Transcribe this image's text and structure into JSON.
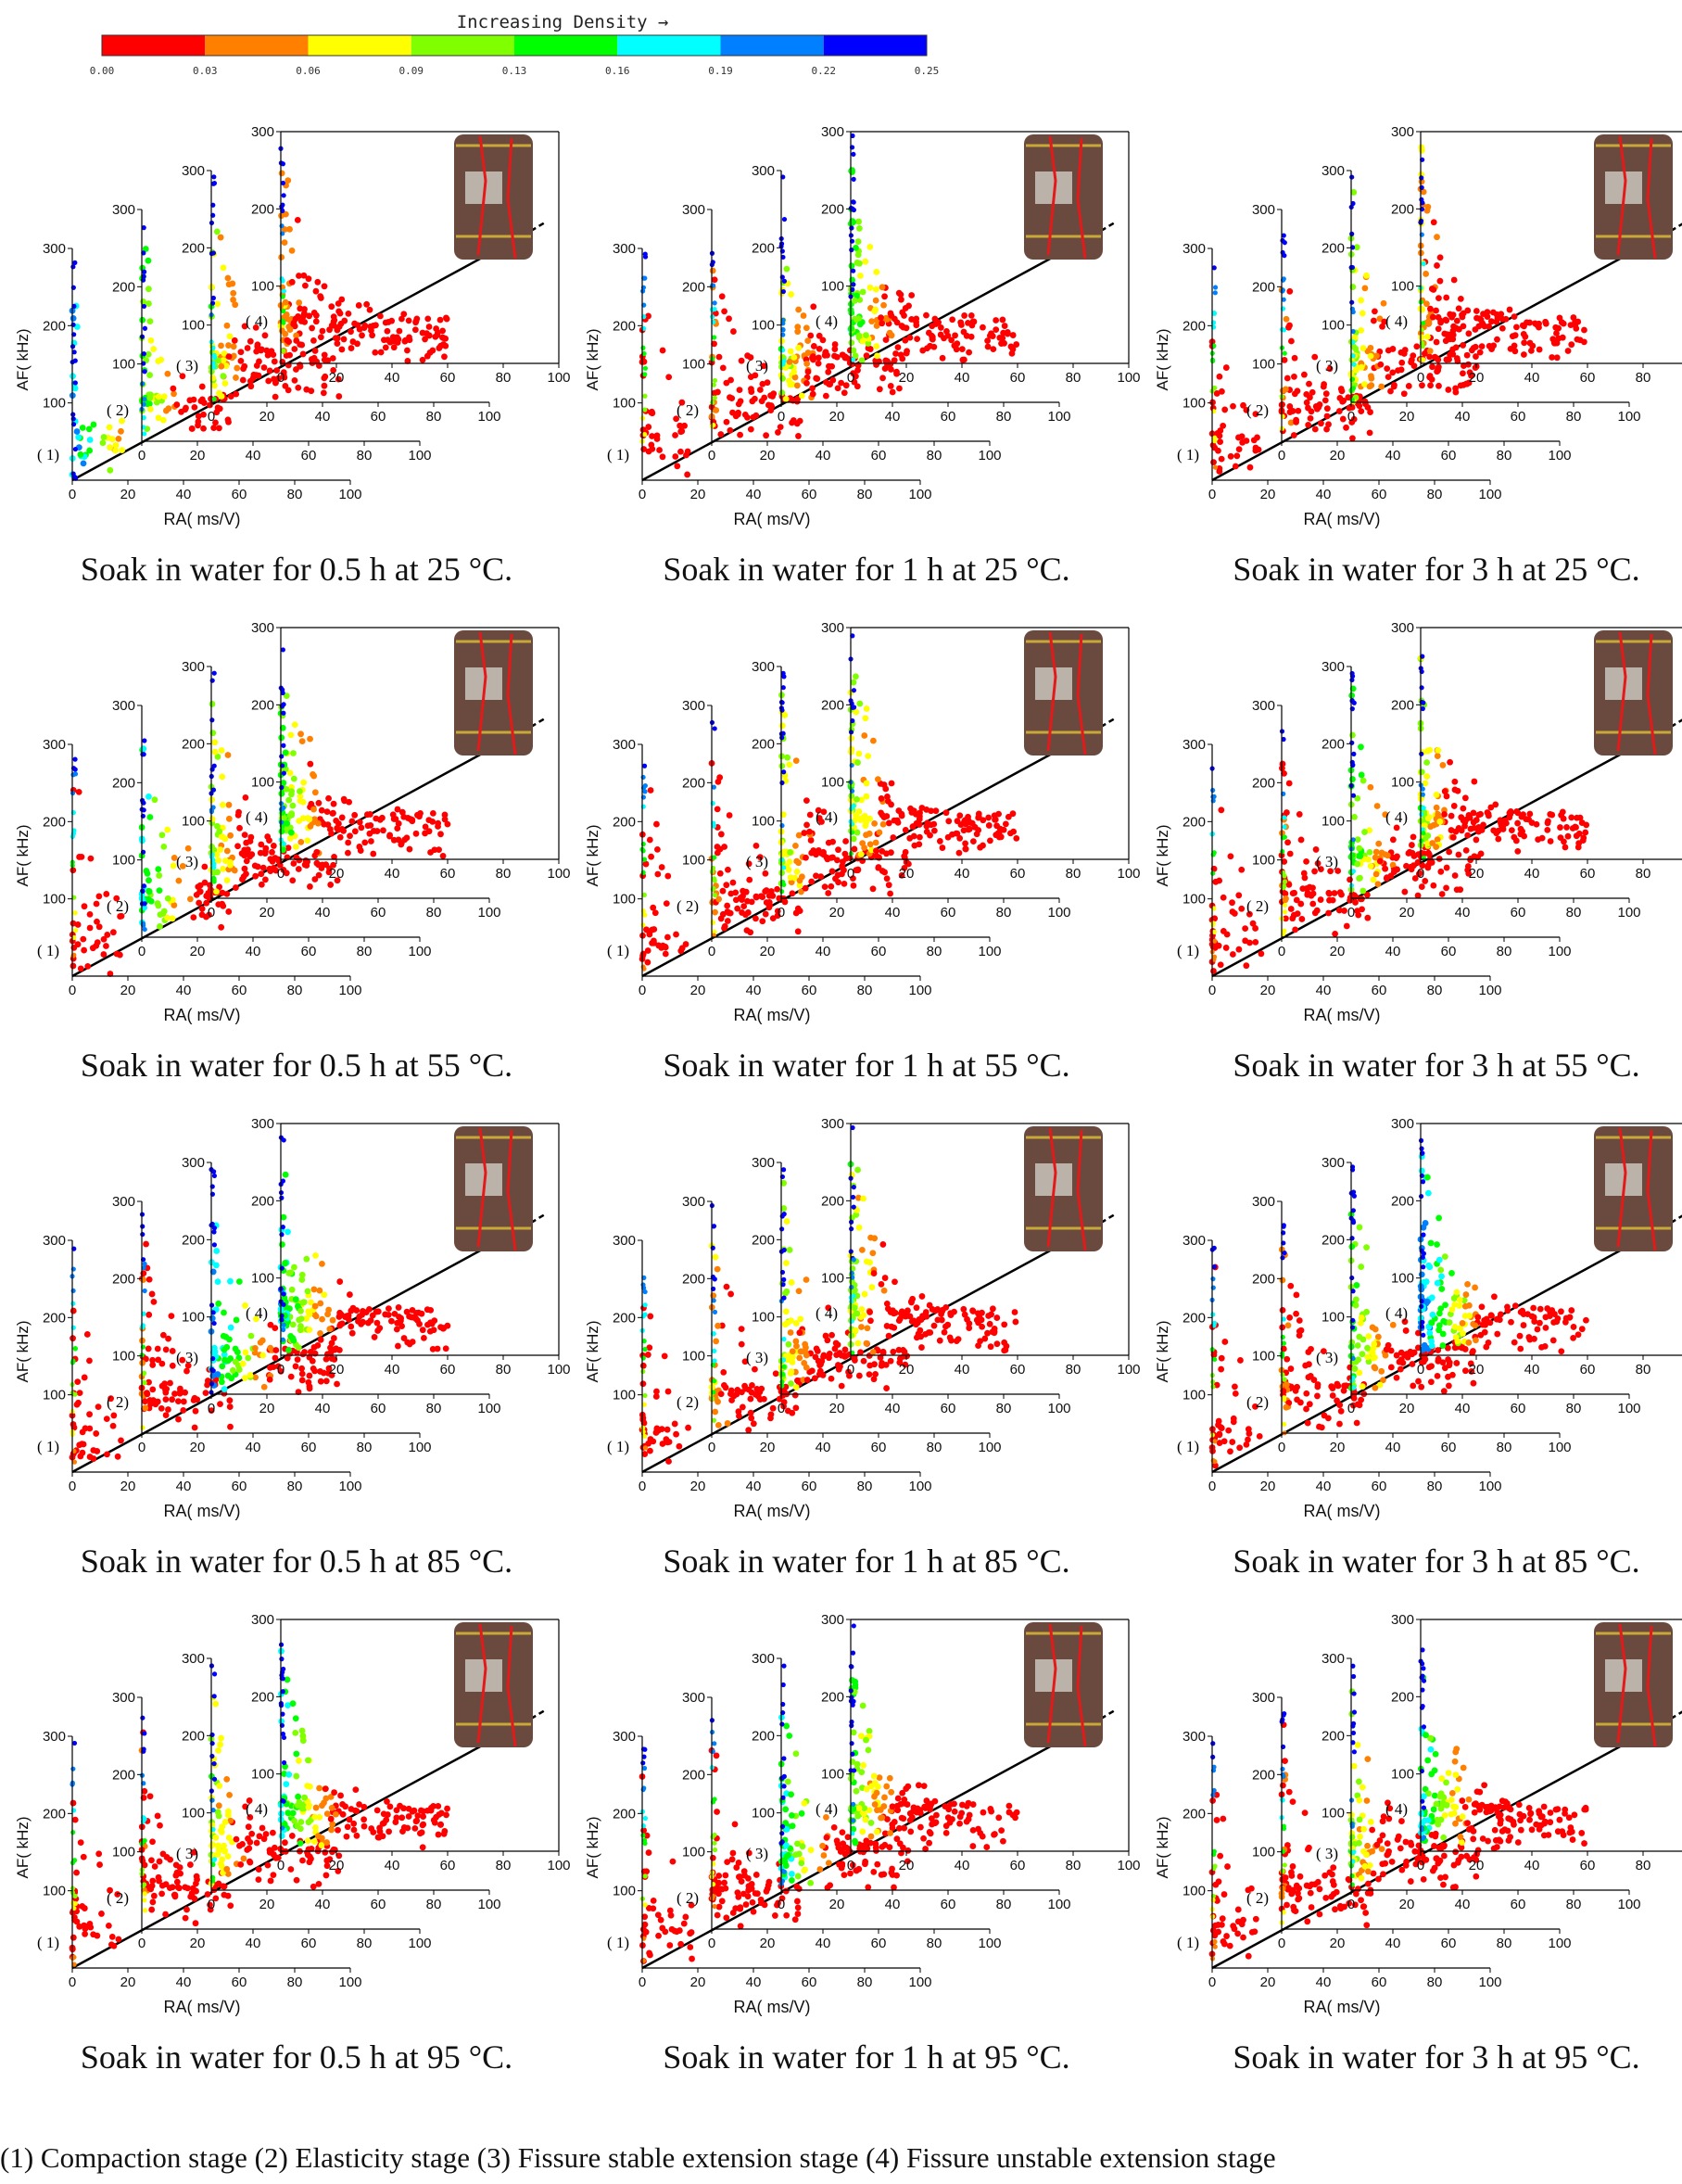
{
  "colorbar": {
    "title": "Increasing Density →",
    "ticks": [
      "0.00",
      "0.03",
      "0.06",
      "0.09",
      "0.13",
      "0.16",
      "0.19",
      "0.22",
      "0.25"
    ],
    "colors": [
      "#ff0000",
      "#ff8000",
      "#ffff00",
      "#80ff00",
      "#00ff00",
      "#00ffff",
      "#0080ff",
      "#0000ff"
    ]
  },
  "chart_data": [
    {
      "type": "scatter",
      "caption": "Soak in water for 0.5 h at 25 °C.",
      "xlabel": "RA( ms/V)",
      "ylabel": "AF( kHz)",
      "axes": {
        "x": [
          0,
          100
        ],
        "y": [
          0,
          300
        ],
        "xticks": [
          0,
          20,
          40,
          60,
          80,
          100
        ],
        "yticks": [
          0,
          100,
          200,
          300
        ]
      },
      "stages": [
        "( 1)",
        "( 2)",
        "( 3)",
        "( 4)"
      ],
      "density_by_stage": [
        0.22,
        0.16,
        0.13,
        0.09
      ]
    },
    {
      "type": "scatter",
      "caption": "Soak in water for 1 h at 25 °C.",
      "xlabel": "RA( ms/V)",
      "ylabel": "AF( kHz)",
      "axes": {
        "x": [
          0,
          100
        ],
        "y": [
          0,
          300
        ],
        "xticks": [
          0,
          20,
          40,
          60,
          80,
          100
        ],
        "yticks": [
          0,
          100,
          200,
          300
        ]
      },
      "stages": [
        "( 1)",
        "( 2)",
        "( 3)",
        "( 4)"
      ],
      "density_by_stage": [
        0.03,
        0.06,
        0.13,
        0.16
      ]
    },
    {
      "type": "scatter",
      "caption": "Soak in water for 3 h at 25 °C.",
      "xlabel": "RA( ms/V)",
      "ylabel": "AF( kHz)",
      "axes": {
        "x": [
          0,
          100
        ],
        "y": [
          0,
          300
        ],
        "xticks": [
          0,
          20,
          40,
          60,
          80,
          100
        ],
        "yticks": [
          0,
          100,
          200,
          300
        ]
      },
      "stages": [
        "( 1)",
        "( 2)",
        "( 3)",
        "( 4)"
      ],
      "density_by_stage": [
        0.03,
        0.06,
        0.13,
        0.09
      ]
    },
    {
      "type": "scatter",
      "caption": "Soak in water for 0.5 h at 55 °C.",
      "xlabel": "RA( ms/V)",
      "ylabel": "AF( kHz)",
      "axes": {
        "x": [
          0,
          100
        ],
        "y": [
          0,
          300
        ],
        "xticks": [
          0,
          20,
          40,
          60,
          80,
          100
        ],
        "yticks": [
          0,
          100,
          200,
          300
        ]
      },
      "stages": [
        "( 1)",
        "( 2)",
        "( 3)",
        "( 4)"
      ],
      "density_by_stage": [
        0.03,
        0.19,
        0.13,
        0.16
      ]
    },
    {
      "type": "scatter",
      "caption": "Soak in water for 1 h at 55 °C.",
      "xlabel": "RA( ms/V)",
      "ylabel": "AF( kHz)",
      "axes": {
        "x": [
          0,
          100
        ],
        "y": [
          0,
          300
        ],
        "xticks": [
          0,
          20,
          40,
          60,
          80,
          100
        ],
        "yticks": [
          0,
          100,
          200,
          300
        ]
      },
      "stages": [
        "( 1)",
        "( 2)",
        "( 3)",
        "( 4)"
      ],
      "density_by_stage": [
        0.03,
        0.06,
        0.13,
        0.13
      ]
    },
    {
      "type": "scatter",
      "caption": "Soak in water for 3 h at 55 °C.",
      "xlabel": "RA( ms/V)",
      "ylabel": "AF( kHz)",
      "axes": {
        "x": [
          0,
          100
        ],
        "y": [
          0,
          300
        ],
        "xticks": [
          0,
          20,
          40,
          60,
          80,
          100
        ],
        "yticks": [
          0,
          100,
          200,
          300
        ]
      },
      "stages": [
        "( 1)",
        "( 2)",
        "( 3)",
        "( 4)"
      ],
      "density_by_stage": [
        0.03,
        0.06,
        0.16,
        0.13
      ]
    },
    {
      "type": "scatter",
      "caption": "Soak in water for 0.5 h at 85 °C.",
      "xlabel": "RA( ms/V)",
      "ylabel": "AF( kHz)",
      "axes": {
        "x": [
          0,
          100
        ],
        "y": [
          0,
          300
        ],
        "xticks": [
          0,
          20,
          40,
          60,
          80,
          100
        ],
        "yticks": [
          0,
          100,
          200,
          300
        ]
      },
      "stages": [
        "( 1)",
        "( 2)",
        "( 3)",
        "( 4)"
      ],
      "density_by_stage": [
        0.03,
        0.06,
        0.22,
        0.19
      ]
    },
    {
      "type": "scatter",
      "caption": "Soak in water for 1 h at 85 °C.",
      "xlabel": "RA( ms/V)",
      "ylabel": "AF( kHz)",
      "axes": {
        "x": [
          0,
          100
        ],
        "y": [
          0,
          300
        ],
        "xticks": [
          0,
          20,
          40,
          60,
          80,
          100
        ],
        "yticks": [
          0,
          100,
          200,
          300
        ]
      },
      "stages": [
        "( 1)",
        "( 2)",
        "( 3)",
        "( 4)"
      ],
      "density_by_stage": [
        0.03,
        0.09,
        0.13,
        0.13
      ]
    },
    {
      "type": "scatter",
      "caption": "Soak in water for 3 h at 85 °C.",
      "xlabel": "RA( ms/V)",
      "ylabel": "AF( kHz)",
      "axes": {
        "x": [
          0,
          100
        ],
        "y": [
          0,
          300
        ],
        "xticks": [
          0,
          20,
          40,
          60,
          80,
          100
        ],
        "yticks": [
          0,
          100,
          200,
          300
        ]
      },
      "stages": [
        "( 1)",
        "( 2)",
        "( 3)",
        "( 4)"
      ],
      "density_by_stage": [
        0.03,
        0.06,
        0.16,
        0.22
      ]
    },
    {
      "type": "scatter",
      "caption": "Soak in water for 0.5 h at 95 °C.",
      "xlabel": "RA( ms/V)",
      "ylabel": "AF( kHz)",
      "axes": {
        "x": [
          0,
          100
        ],
        "y": [
          0,
          300
        ],
        "xticks": [
          0,
          20,
          40,
          60,
          80,
          100
        ],
        "yticks": [
          0,
          100,
          200,
          300
        ]
      },
      "stages": [
        "( 1)",
        "( 2)",
        "( 3)",
        "( 4)"
      ],
      "density_by_stage": [
        0.03,
        0.06,
        0.13,
        0.19
      ]
    },
    {
      "type": "scatter",
      "caption": "Soak in water for 1 h at 95 °C.",
      "xlabel": "RA( ms/V)",
      "ylabel": "AF( kHz)",
      "axes": {
        "x": [
          0,
          100
        ],
        "y": [
          0,
          300
        ],
        "xticks": [
          0,
          20,
          40,
          60,
          80,
          100
        ],
        "yticks": [
          0,
          100,
          200,
          300
        ]
      },
      "stages": [
        "( 1)",
        "( 2)",
        "( 3)",
        "( 4)"
      ],
      "density_by_stage": [
        0.03,
        0.03,
        0.19,
        0.16
      ]
    },
    {
      "type": "scatter",
      "caption": "Soak in water for 3 h at 95 °C.",
      "xlabel": "RA( ms/V)",
      "ylabel": "AF( kHz)",
      "axes": {
        "x": [
          0,
          100
        ],
        "y": [
          0,
          300
        ],
        "xticks": [
          0,
          20,
          40,
          60,
          80,
          100
        ],
        "yticks": [
          0,
          100,
          200,
          300
        ]
      },
      "stages": [
        "( 1)",
        "( 2)",
        "( 3)",
        "( 4)"
      ],
      "density_by_stage": [
        0.03,
        0.06,
        0.13,
        0.19
      ]
    }
  ],
  "legend_note": "(1) Compaction stage (2) Elasticity stage (3) Fissure stable extension stage (4) Fissure unstable extension stage"
}
